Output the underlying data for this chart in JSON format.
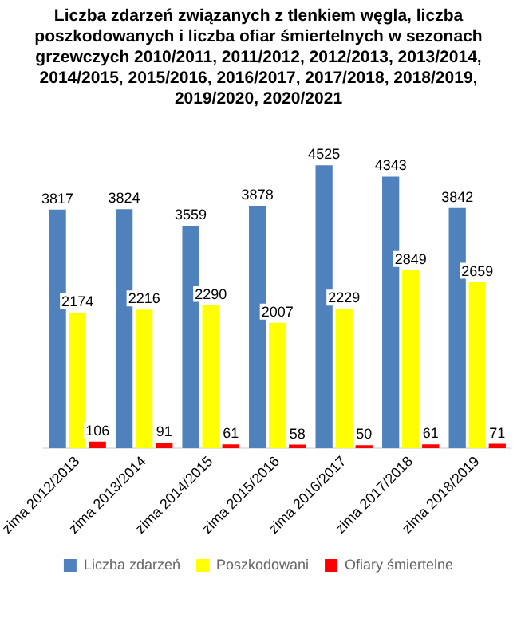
{
  "chart_data": {
    "type": "bar",
    "title": "Liczba zdarzeń związanych z tlenkiem węgla, liczba poszkodowanych i liczba ofiar śmiertelnych w sezonach grzewczych 2010/2011, 2011/2012, 2012/2013, 2013/2014, 2014/2015, 2015/2016, 2016/2017, 2017/2018, 2018/2019, 2019/2020, 2020/2021",
    "categories": [
      "zima 2012/2013",
      "zima 2013/2014",
      "zima 2014/2015",
      "zima 2015/2016",
      "zima 2016/2017",
      "zima 2017/2018",
      "zima 2018/2019"
    ],
    "series": [
      {
        "name": "Liczba zdarzeń",
        "color": "#4f81bd",
        "values": [
          3817,
          3824,
          3559,
          3878,
          4525,
          4343,
          3842
        ]
      },
      {
        "name": "Poszkodowani",
        "color": "#ffff00",
        "values": [
          2174,
          2216,
          2290,
          2007,
          2229,
          2849,
          2659
        ]
      },
      {
        "name": "Ofiary śmiertelne",
        "color": "#ff0000",
        "values": [
          106,
          91,
          61,
          58,
          50,
          61,
          71
        ]
      }
    ],
    "data_labels": true,
    "grid": false,
    "legend": "bottom"
  }
}
